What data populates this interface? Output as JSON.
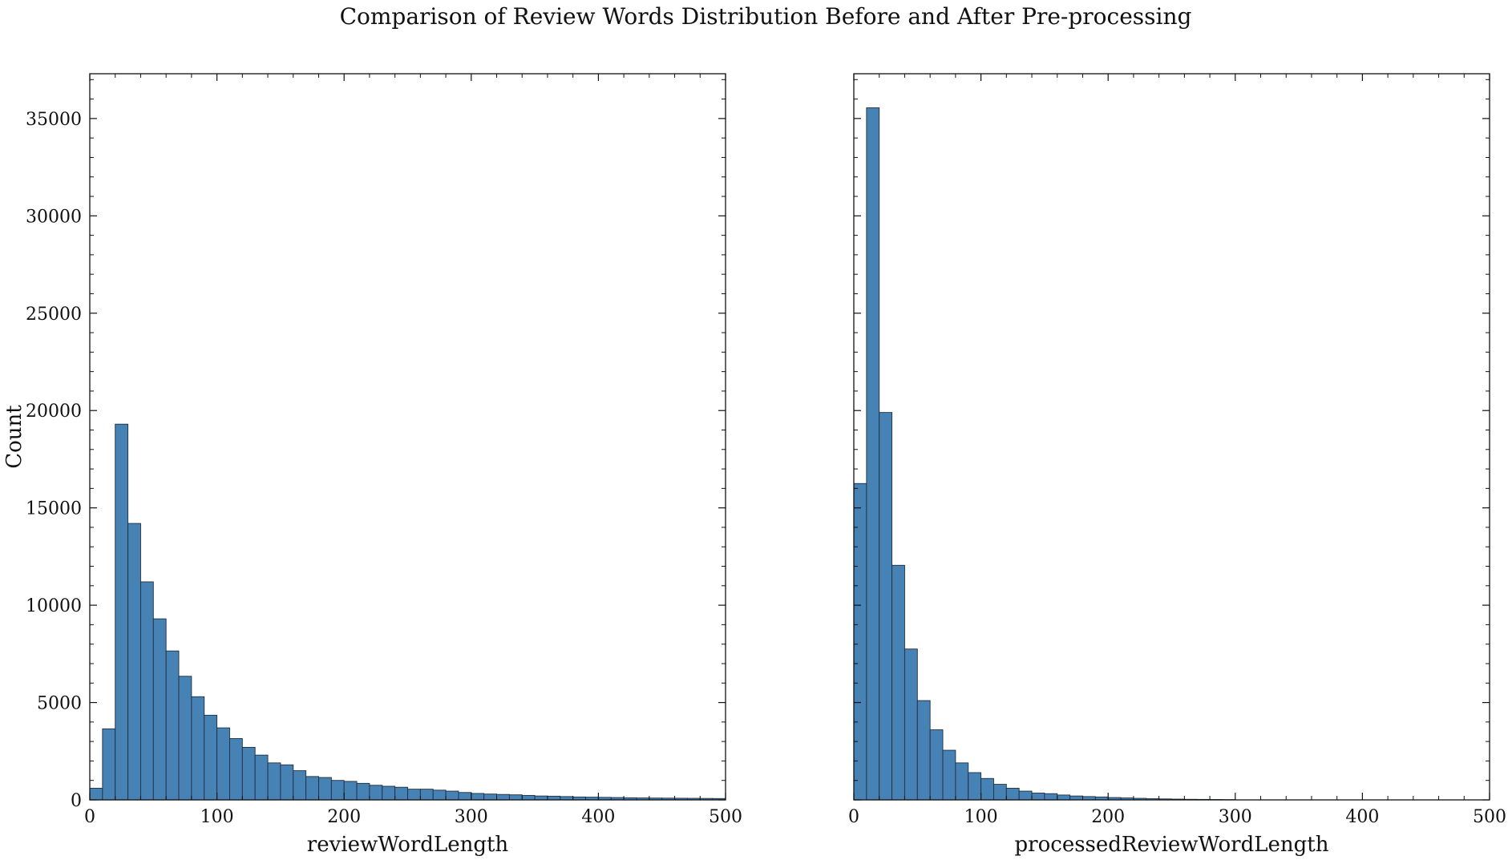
{
  "figure": {
    "title": "Comparison of Review Words Distribution Before and After Pre-processing"
  },
  "colors": {
    "bar_fill": "#4682b4",
    "bar_edge": "#1f2f3f"
  },
  "chart_data": [
    {
      "type": "bar",
      "subtype": "histogram",
      "title": "",
      "xlabel": "reviewWordLength",
      "ylabel": "Count",
      "xlim": [
        0,
        500
      ],
      "ylim": [
        0,
        37300
      ],
      "xticks": [
        "0",
        "100",
        "200",
        "300",
        "400",
        "500"
      ],
      "yticks": [
        "0",
        "5000",
        "10000",
        "15000",
        "20000",
        "25000",
        "30000",
        "35000"
      ],
      "bin_width": 10,
      "bins_start": [
        0,
        10,
        20,
        30,
        40,
        50,
        60,
        70,
        80,
        90,
        100,
        110,
        120,
        130,
        140,
        150,
        160,
        170,
        180,
        190,
        200,
        210,
        220,
        230,
        240,
        250,
        260,
        270,
        280,
        290,
        300,
        310,
        320,
        330,
        340,
        350,
        360,
        370,
        380,
        390,
        400,
        410,
        420,
        430,
        440,
        450,
        460,
        470,
        480,
        490
      ],
      "values": [
        600,
        3650,
        19300,
        14200,
        11200,
        9300,
        7650,
        6350,
        5300,
        4350,
        3700,
        3150,
        2700,
        2300,
        1900,
        1800,
        1500,
        1200,
        1150,
        1000,
        950,
        850,
        750,
        700,
        650,
        550,
        550,
        500,
        450,
        380,
        330,
        300,
        280,
        260,
        230,
        200,
        190,
        170,
        150,
        140,
        130,
        120,
        110,
        100,
        95,
        90,
        85,
        80,
        75,
        70
      ],
      "grid": false,
      "legend": "none"
    },
    {
      "type": "bar",
      "subtype": "histogram",
      "title": "",
      "xlabel": "processedReviewWordLength",
      "ylabel": "",
      "xlim": [
        0,
        500
      ],
      "ylim": [
        0,
        37300
      ],
      "xticks": [
        "0",
        "100",
        "200",
        "300",
        "400",
        "500"
      ],
      "yticks": [],
      "bin_width": 10,
      "bins_start": [
        0,
        10,
        20,
        30,
        40,
        50,
        60,
        70,
        80,
        90,
        100,
        110,
        120,
        130,
        140,
        150,
        160,
        170,
        180,
        190,
        200,
        210,
        220,
        230,
        240,
        250,
        260,
        270,
        280,
        290
      ],
      "values": [
        16250,
        35550,
        19900,
        12050,
        7750,
        5100,
        3600,
        2550,
        1900,
        1400,
        1100,
        800,
        600,
        450,
        350,
        320,
        250,
        200,
        170,
        150,
        120,
        100,
        80,
        60,
        50,
        40,
        30,
        25,
        20,
        15
      ],
      "grid": false,
      "legend": "none"
    }
  ]
}
